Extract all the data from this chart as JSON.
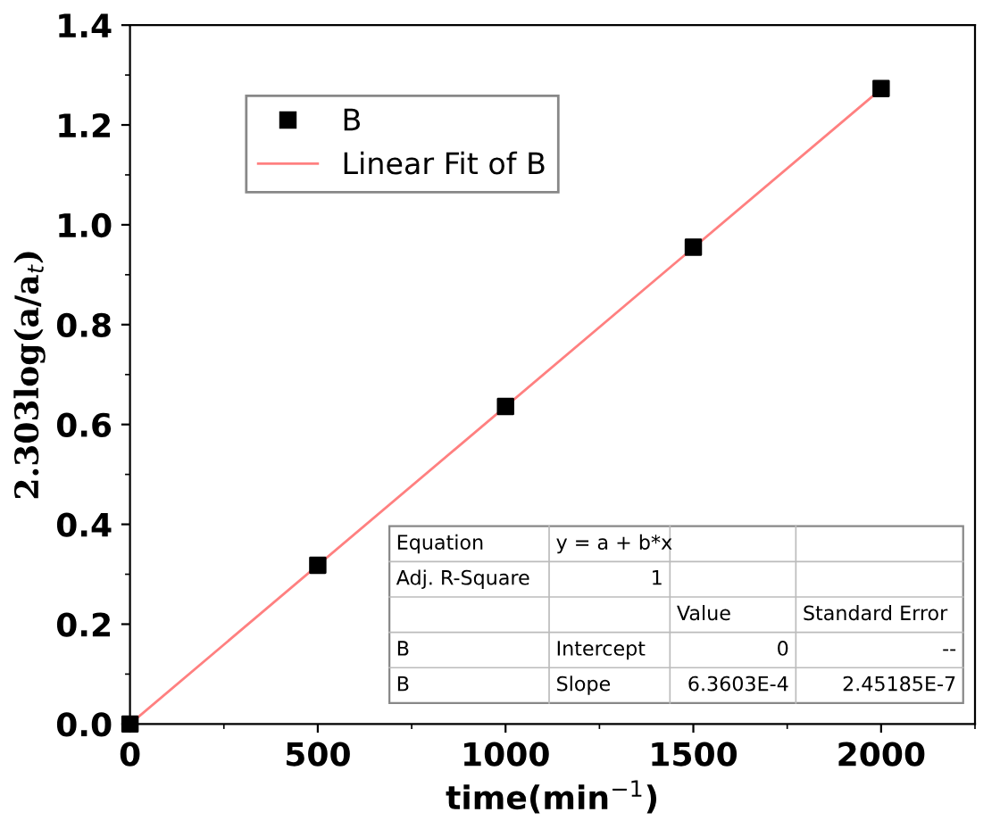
{
  "chart_data": {
    "type": "scatter",
    "xlabel": "time(min$^{−1}$)",
    "ylabel": "2.303log(a/a$_{t}$)",
    "x": [
      0,
      500,
      1000,
      1500,
      2000
    ],
    "series": [
      {
        "name": "B",
        "color": "#000000",
        "marker": "square",
        "values": [
          0,
          0.318,
          0.636,
          0.955,
          1.273
        ]
      },
      {
        "name": "Linear Fit of B",
        "type": "line",
        "color": "#ff8080",
        "x": [
          0,
          2000
        ],
        "values": [
          0,
          1.272
        ]
      }
    ],
    "xlim": [
      0,
      2250
    ],
    "xticks": [
      0,
      500,
      1000,
      1500,
      2000
    ],
    "ylim": [
      0,
      1.4
    ],
    "yticks": [
      {
        "value": 0,
        "label": "0.0"
      },
      {
        "value": 0.2,
        "label": "0.2"
      },
      {
        "value": 0.4,
        "label": "0.4"
      },
      {
        "value": 0.6,
        "label": "0.6"
      },
      {
        "value": 0.8,
        "label": "0.8"
      },
      {
        "value": 1.0,
        "label": "1.0"
      },
      {
        "value": 1.2,
        "label": "1.2"
      },
      {
        "value": 1.4,
        "label": "1.4"
      }
    ],
    "legend": "top left",
    "grid": false,
    "annotations": [
      "Equation",
      "y = a + b*x",
      "Adj. R-Square",
      "1",
      "Value",
      "Standard Error",
      "B",
      "Intercept",
      "0",
      "--",
      "B",
      "Slope",
      "6.3603E-4",
      "2.45185E-7"
    ]
  }
}
